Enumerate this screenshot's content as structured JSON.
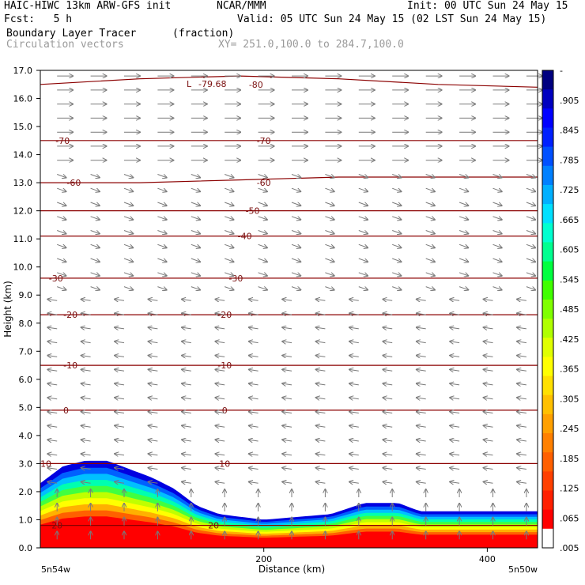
{
  "header": {
    "model": "HAIC-HIWC 13km ARW-GFS init",
    "org": "NCAR/MMM",
    "init": "Init: 00 UTC Sun 24 May 15",
    "fcst": "Fcst:   5 h",
    "valid": "Valid: 05 UTC Sun 24 May 15 (02 LST Sun 24 May 15)",
    "field": "Boundary Layer Tracer",
    "units": "(fraction)",
    "vectors": "Circulation vectors",
    "xy": "XY= 251.0,100.0 to 284.7,100.0"
  },
  "colors": {
    "contour": "#8b0000",
    "vector": "#7a7a7a",
    "colorbar": [
      "#ffffff",
      "#ff0000",
      "#ff2000",
      "#ff4000",
      "#ff6000",
      "#ff8000",
      "#ffa000",
      "#ffc000",
      "#ffe000",
      "#ffff00",
      "#e0ff00",
      "#b0ff00",
      "#80ff00",
      "#40ff00",
      "#00ff40",
      "#00ff90",
      "#00ffd0",
      "#00e0ff",
      "#00b0ff",
      "#0080ff",
      "#0050ff",
      "#0020ff",
      "#0000ff",
      "#0000c0",
      "#000080"
    ]
  },
  "chart_data": {
    "type": "heatmap",
    "xlabel": "Distance (km)",
    "ylabel": "Height (km)",
    "xlim": [
      0,
      445
    ],
    "ylim": [
      0,
      17
    ],
    "x_ticks": [
      200,
      400
    ],
    "y_ticks": [
      "0.0",
      "1.0",
      "2.0",
      "3.0",
      "4.0",
      "5.0",
      "6.0",
      "7.0",
      "8.0",
      "9.0",
      "10.0",
      "11.0",
      "12.0",
      "13.0",
      "14.0",
      "15.0",
      "16.0",
      "17.0"
    ],
    "x_endpoints": [
      "5n54w",
      "5n50w"
    ],
    "colorbar_labels": [
      "-",
      ".905",
      ".845",
      ".785",
      ".725",
      ".665",
      ".605",
      ".545",
      ".485",
      ".425",
      ".365",
      ".305",
      ".245",
      ".185",
      ".125",
      ".065",
      ".005"
    ],
    "tracer_top_profile": {
      "x": [
        0,
        20,
        40,
        60,
        80,
        100,
        120,
        140,
        160,
        200,
        260,
        290,
        320,
        340,
        400,
        445
      ],
      "top_km": [
        2.3,
        2.9,
        3.1,
        3.1,
        2.8,
        2.5,
        2.1,
        1.5,
        1.2,
        1.0,
        1.2,
        1.6,
        1.6,
        1.3,
        1.3,
        1.3
      ]
    },
    "contours": [
      {
        "value": 10,
        "label": "10",
        "heights": [
          3.0,
          3.0,
          3.0,
          3.0,
          3.0,
          3.0
        ]
      },
      {
        "value": 0,
        "label": "0",
        "heights": [
          4.9,
          4.9,
          4.9,
          4.9,
          4.9,
          4.9
        ]
      },
      {
        "value": -10,
        "label": "-10",
        "heights": [
          6.5,
          6.5,
          6.5,
          6.5,
          6.5,
          6.5
        ]
      },
      {
        "value": -20,
        "label": "-20",
        "heights": [
          8.3,
          8.3,
          8.3,
          8.3,
          8.3,
          8.3
        ]
      },
      {
        "value": -30,
        "label": "-30",
        "heights": [
          9.6,
          9.6,
          9.6,
          9.6,
          9.6,
          9.6
        ]
      },
      {
        "value": -40,
        "label": "-40",
        "heights": [
          11.1,
          11.1,
          11.1,
          11.1,
          11.1,
          11.1
        ]
      },
      {
        "value": -50,
        "label": "-50",
        "heights": [
          12.0,
          12.0,
          12.0,
          12.0,
          12.0,
          12.0
        ]
      },
      {
        "value": -60,
        "label": "-60",
        "heights": [
          13.0,
          13.0,
          13.1,
          13.2,
          13.2,
          13.2
        ]
      },
      {
        "value": -70,
        "label": "-70",
        "heights": [
          14.5,
          14.5,
          14.5,
          14.5,
          14.5,
          14.5
        ]
      },
      {
        "value": -80,
        "label": "-80",
        "heights": [
          16.5,
          16.7,
          16.8,
          16.7,
          16.5,
          16.4
        ]
      },
      {
        "value": 20,
        "label": "20",
        "heights": [
          0.8,
          0.8,
          0.8,
          0.8,
          0.8,
          0.8
        ]
      }
    ],
    "min_label": "-79.68",
    "low_marker": "L"
  }
}
